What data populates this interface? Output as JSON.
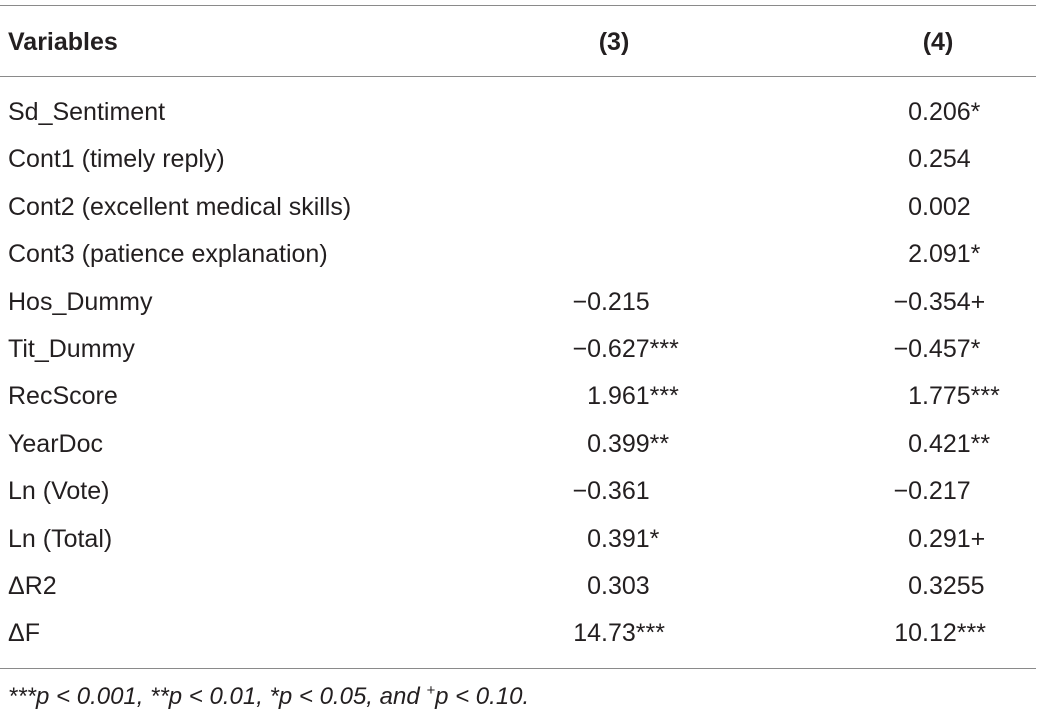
{
  "table": {
    "header": [
      "Variables",
      "(3)",
      "(4)"
    ],
    "rows": [
      [
        "Sd_Sentiment",
        "",
        "0.206*"
      ],
      [
        "Cont1 (timely reply)",
        "",
        "0.254"
      ],
      [
        "Cont2 (excellent medical skills)",
        "",
        "0.002"
      ],
      [
        "Cont3 (patience explanation)",
        "",
        "2.091*"
      ],
      [
        "Hos_Dummy",
        "−0.215",
        "−0.354+"
      ],
      [
        "Tit_Dummy",
        "−0.627***",
        "−0.457*"
      ],
      [
        "RecScore",
        "1.961***",
        "1.775***"
      ],
      [
        "YearDoc",
        "0.399**",
        "0.421**"
      ],
      [
        "Ln (Vote)",
        "−0.361",
        "−0.217"
      ],
      [
        "Ln (Total)",
        "0.391*",
        "0.291+"
      ],
      [
        "ΔR2",
        "0.303",
        "0.3255"
      ],
      [
        "ΔF",
        "14.73***",
        "10.12***"
      ]
    ],
    "footnote": [
      "***p < 0.001, **p < 0.01, *p < 0.05, and ",
      "+",
      "p < 0.10."
    ]
  }
}
